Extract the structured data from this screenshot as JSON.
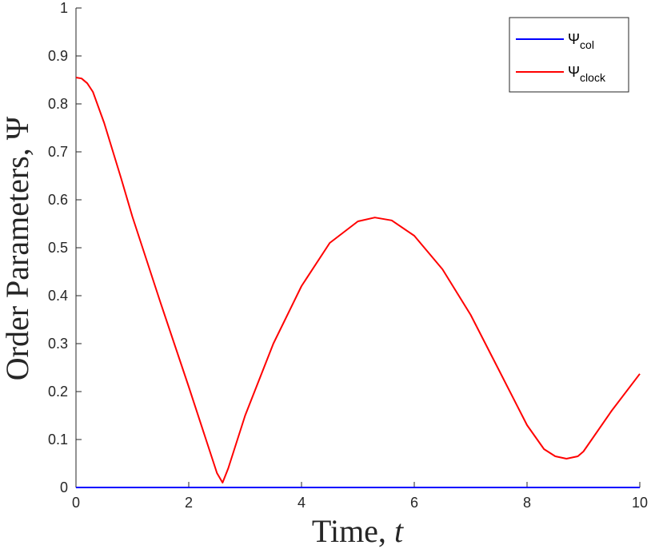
{
  "chart_data": {
    "type": "line",
    "xlabel": "Time, ",
    "xlabel_var": "t",
    "ylabel": "Order Parameters, Ψ",
    "xlim": [
      0,
      10
    ],
    "ylim": [
      0,
      1
    ],
    "x_ticks": [
      "0",
      "2",
      "4",
      "6",
      "8",
      "10"
    ],
    "y_ticks": [
      "0",
      "0.1",
      "0.2",
      "0.3",
      "0.4",
      "0.5",
      "0.6",
      "0.7",
      "0.8",
      "0.9",
      "1"
    ],
    "legend_position": "top-right",
    "grid": false,
    "series": [
      {
        "legend_symbol": "Ψ",
        "legend_subscript": "col",
        "color": "#0000ff",
        "x": [
          0,
          1,
          2,
          3,
          4,
          5,
          6,
          7,
          8,
          9,
          10
        ],
        "y": [
          0,
          0,
          0,
          0,
          0,
          0,
          0,
          0,
          0,
          0,
          0
        ]
      },
      {
        "legend_symbol": "Ψ",
        "legend_subscript": "clock",
        "color": "#ff0000",
        "x": [
          0,
          0.1,
          0.2,
          0.3,
          0.5,
          0.8,
          1.0,
          1.5,
          2.0,
          2.5,
          2.6,
          2.7,
          3.0,
          3.5,
          4.0,
          4.5,
          5.0,
          5.3,
          5.6,
          6.0,
          6.5,
          7.0,
          7.5,
          8.0,
          8.3,
          8.5,
          8.7,
          8.9,
          9.0,
          9.5,
          10.0
        ],
        "y": [
          0.855,
          0.853,
          0.843,
          0.825,
          0.76,
          0.645,
          0.565,
          0.385,
          0.21,
          0.03,
          0.01,
          0.04,
          0.15,
          0.3,
          0.42,
          0.51,
          0.555,
          0.563,
          0.557,
          0.525,
          0.455,
          0.36,
          0.245,
          0.13,
          0.08,
          0.065,
          0.06,
          0.065,
          0.075,
          0.16,
          0.237
        ]
      }
    ]
  }
}
